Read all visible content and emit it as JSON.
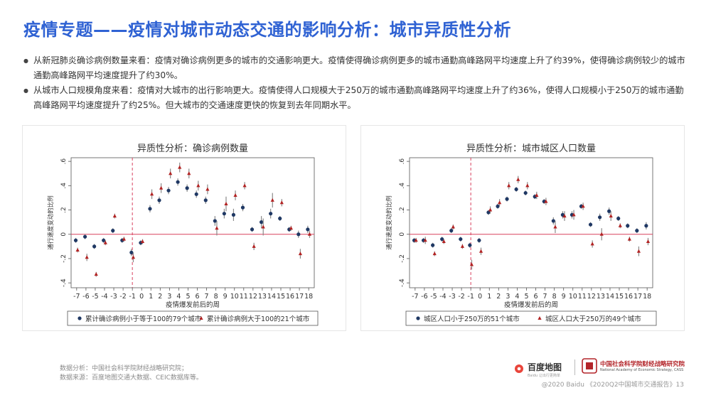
{
  "header": {
    "title": "疫情专题——疫情对城市动态交通的影响分析：城市异质性分析"
  },
  "bullets": [
    "从新冠肺炎确诊病例数量来看：疫情对确诊病例更多的城市的交通影响更大。疫情使得确诊病例更多的城市通勤高峰路网平均速度上升了约39%，使得确诊病例较少的城市通勤高峰路网平均速度提升了约30%。",
    "从城市人口规模角度来看：疫情对大城市的出行影响更大。疫情使得人口规模大于250万的城市通勤高峰路网平均速度上升了约36%，使得人口规模小于250万的城市通勤高峰路网平均速度提升了约25%。但大城市的交通速度更快的恢复到去年同期水平。"
  ],
  "colors": {
    "title": "#2f62d3",
    "series_a": "#1f3864",
    "series_b": "#b22222",
    "zero_line": "#d9415f",
    "ci": "#8a8a8a"
  },
  "chart_data": [
    {
      "type": "scatter",
      "title": "异质性分析：确诊病例数量",
      "xlabel": "疫情爆发前后的周",
      "ylabel": "通行速度变动的比例",
      "x": [
        -7,
        -6,
        -5,
        -4,
        -3,
        -2,
        -1,
        0,
        1,
        2,
        3,
        4,
        5,
        6,
        7,
        8,
        9,
        10,
        11,
        12,
        13,
        14,
        15,
        16,
        17,
        18
      ],
      "xticks": [
        "-7",
        "-6",
        "-5",
        "-4",
        "-3",
        "-2",
        "-1",
        "0",
        "1",
        "2",
        "3",
        "4",
        "5",
        "6",
        "7",
        "8",
        "9",
        "10",
        "11",
        "12",
        "13",
        "14",
        "15",
        "16",
        "17",
        "18"
      ],
      "yticks": [
        -0.4,
        -0.2,
        0,
        0.2,
        0.4,
        0.6
      ],
      "ytick_labels": [
        "-.4",
        "-.2",
        "0",
        ".2",
        ".4",
        ".6"
      ],
      "ylim": [
        -0.44,
        0.63
      ],
      "event_line_x": -1,
      "series": [
        {
          "name": "累计确诊病例小于等于100的79个城市",
          "marker": "circle",
          "values": [
            -0.05,
            -0.02,
            -0.1,
            -0.05,
            0.03,
            -0.05,
            -0.15,
            -0.07,
            0.21,
            0.28,
            0.36,
            0.43,
            0.38,
            0.33,
            0.28,
            0.11,
            0.17,
            0.16,
            0.22,
            0.04,
            0.1,
            0.17,
            0.13,
            0.04,
            0.0,
            0.04
          ],
          "err": [
            0.02,
            0.02,
            0.02,
            0.02,
            0.02,
            0.02,
            0.03,
            0.02,
            0.03,
            0.03,
            0.03,
            0.03,
            0.03,
            0.03,
            0.03,
            0.04,
            0.04,
            0.05,
            0.03,
            0.02,
            0.05,
            0.04,
            0.02,
            0.02,
            0.03,
            0.03
          ]
        },
        {
          "name": "累计确诊病例大于100的21个城市",
          "marker": "triangle",
          "values": [
            -0.13,
            -0.19,
            -0.33,
            -0.07,
            0.15,
            -0.04,
            -0.19,
            -0.06,
            0.33,
            0.38,
            0.5,
            0.55,
            0.5,
            0.4,
            0.37,
            0.05,
            0.25,
            0.32,
            0.4,
            -0.1,
            0.06,
            0.28,
            0.26,
            0.05,
            -0.16,
            0.0
          ],
          "err": [
            0.02,
            0.03,
            0.02,
            0.02,
            0.02,
            0.02,
            0.04,
            0.02,
            0.04,
            0.04,
            0.04,
            0.04,
            0.04,
            0.04,
            0.04,
            0.06,
            0.06,
            0.04,
            0.03,
            0.03,
            0.07,
            0.06,
            0.03,
            0.02,
            0.04,
            0.03
          ]
        }
      ]
    },
    {
      "type": "scatter",
      "title": "异质性分析：城市城区人口数量",
      "xlabel": "疫情爆发前后的周",
      "ylabel": "通行速度变动的比例",
      "x": [
        -7,
        -6,
        -5,
        -4,
        -3,
        -2,
        -1,
        0,
        1,
        2,
        3,
        4,
        5,
        6,
        7,
        8,
        9,
        10,
        11,
        12,
        13,
        14,
        15,
        16,
        17,
        18
      ],
      "xticks": [
        "-7",
        "-6",
        "-5",
        "-4",
        "-3",
        "-2",
        "-1",
        "0",
        "1",
        "2",
        "3",
        "4",
        "5",
        "6",
        "7",
        "8",
        "9",
        "10",
        "11",
        "12",
        "13",
        "14",
        "15",
        "16",
        "17",
        "18"
      ],
      "yticks": [
        -0.4,
        -0.2,
        0,
        0.2,
        0.4,
        0.6
      ],
      "ytick_labels": [
        "-.4",
        "-.2",
        "0",
        ".2",
        ".4",
        ".6"
      ],
      "ylim": [
        -0.44,
        0.63
      ],
      "event_line_x": -1,
      "series": [
        {
          "name": "城区人口小于250万的51个城市",
          "marker": "circle",
          "values": [
            -0.05,
            -0.05,
            -0.09,
            -0.04,
            0.03,
            -0.04,
            -0.09,
            -0.05,
            0.18,
            0.23,
            0.29,
            0.37,
            0.34,
            0.31,
            0.27,
            0.11,
            0.16,
            0.16,
            0.23,
            0.08,
            0.14,
            0.19,
            0.13,
            0.07,
            0.03,
            0.07
          ],
          "err": [
            0.02,
            0.02,
            0.02,
            0.02,
            0.02,
            0.02,
            0.02,
            0.02,
            0.02,
            0.02,
            0.02,
            0.02,
            0.02,
            0.02,
            0.02,
            0.03,
            0.03,
            0.03,
            0.02,
            0.02,
            0.03,
            0.03,
            0.02,
            0.02,
            0.02,
            0.03
          ]
        },
        {
          "name": "城区人口大于250万的49个城市",
          "marker": "triangle",
          "values": [
            -0.05,
            -0.05,
            -0.16,
            -0.06,
            0.06,
            -0.1,
            -0.25,
            -0.14,
            0.2,
            0.26,
            0.4,
            0.45,
            0.4,
            0.32,
            0.27,
            0.06,
            0.15,
            0.16,
            0.23,
            -0.08,
            0.0,
            0.15,
            0.07,
            -0.04,
            -0.14,
            -0.06
          ],
          "err": [
            0.02,
            0.03,
            0.02,
            0.02,
            0.02,
            0.02,
            0.04,
            0.03,
            0.03,
            0.03,
            0.03,
            0.03,
            0.03,
            0.03,
            0.03,
            0.05,
            0.04,
            0.04,
            0.03,
            0.03,
            0.05,
            0.04,
            0.02,
            0.02,
            0.04,
            0.03
          ]
        }
      ]
    }
  ],
  "footer": {
    "analysis": "数据分析：中国社会科学院财经战略研究院；",
    "source": "数据来源：百度地图交通大数据、CEIC数据库等。",
    "copyright": "@2020 Baidu 《2020Q2中国城市交通报告》13",
    "baidu_logo": "百度地图",
    "baidu_sub": "Baidu 让出行更简单",
    "cass_name": "中国社会科学院财经战略研究院",
    "cass_sub": "National Academy of Economic Strategy, CASS"
  }
}
